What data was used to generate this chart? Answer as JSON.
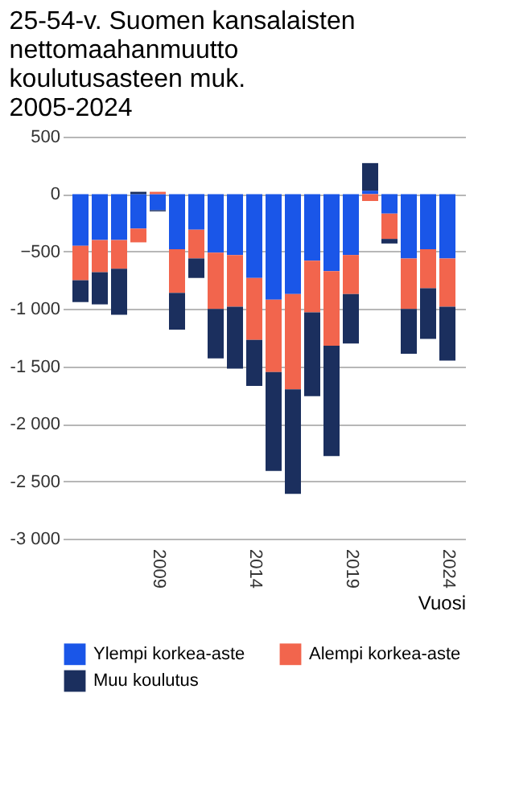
{
  "chart_data": {
    "type": "bar",
    "title": "25-54-v. Suomen kansalaisten nettomaahanmuutto koulutusasteen muk. 2005-2024",
    "xlabel": "Vuosi",
    "stacked": true,
    "x": [
      2005,
      2006,
      2007,
      2008,
      2009,
      2010,
      2011,
      2012,
      2013,
      2014,
      2015,
      2016,
      2017,
      2018,
      2019,
      2020,
      2021,
      2022,
      2023,
      2024
    ],
    "xlim": [
      2004.5,
      2024.5
    ],
    "xticks": [
      2009,
      2014,
      2019,
      2024
    ],
    "ylim": [
      -3000,
      500
    ],
    "yticks": [
      500,
      0,
      -500,
      {
        "value": -1000,
        "label": "-1 000"
      },
      {
        "value": -1500,
        "label": "-1 500"
      },
      {
        "value": -2000,
        "label": "-2 000"
      },
      {
        "value": -2500,
        "label": "-2 500"
      },
      {
        "value": -3000,
        "label": "-3 000"
      }
    ],
    "grid": "y",
    "legend": "bottom",
    "series": [
      {
        "name": "Ylempi korkea-aste",
        "color": "#1a56e8",
        "values": [
          -450,
          -400,
          -400,
          -300,
          -140,
          -480,
          -310,
          -510,
          -530,
          -730,
          -920,
          -870,
          -580,
          -670,
          -530,
          30,
          -170,
          -560,
          -480,
          -560
        ]
      },
      {
        "name": "Alempi korkea-aste",
        "color": "#f2654d",
        "values": [
          -300,
          -280,
          -250,
          -120,
          20,
          -380,
          -250,
          -490,
          -450,
          -540,
          -630,
          -830,
          -450,
          -650,
          -340,
          -60,
          -220,
          -440,
          -340,
          -420
        ]
      },
      {
        "name": "Muu koulutus",
        "color": "#1b2f5e",
        "values": [
          -190,
          -280,
          -400,
          20,
          -10,
          -320,
          -170,
          -430,
          -540,
          -400,
          -860,
          -910,
          -730,
          -960,
          -430,
          240,
          -40,
          -390,
          -440,
          -470
        ]
      }
    ]
  }
}
